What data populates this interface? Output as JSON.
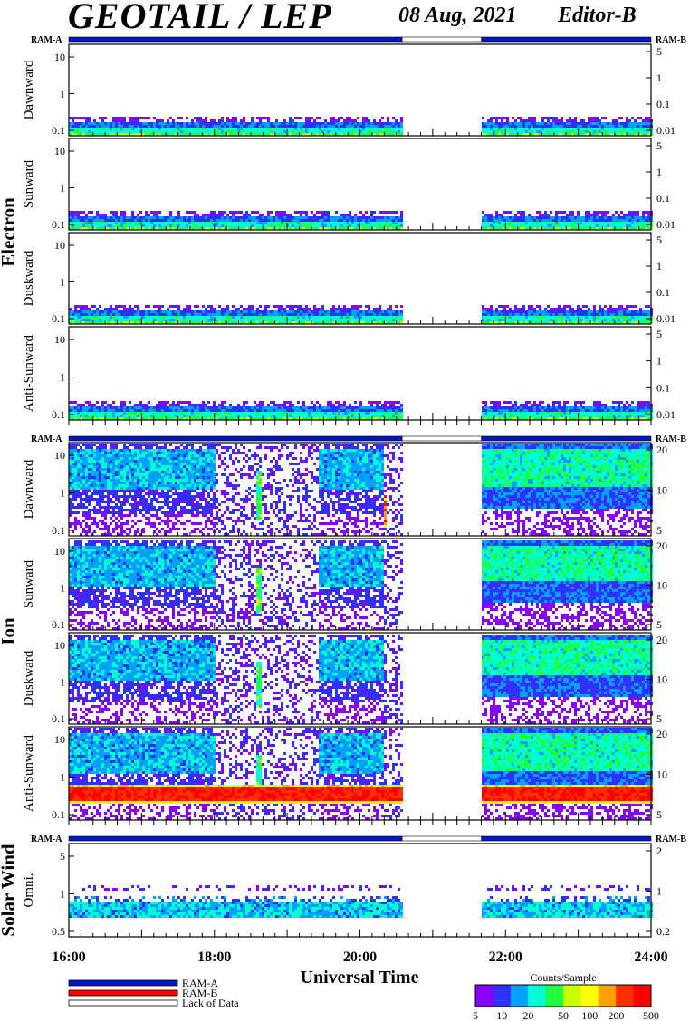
{
  "header": {
    "title": "GEOTAIL / LEP",
    "date": "08 Aug, 2021",
    "editor": "Editor-B"
  },
  "ram_labels": {
    "left": "RAM-A",
    "right": "RAM-B"
  },
  "groups": [
    {
      "label": "Electron"
    },
    {
      "label": "Ion"
    },
    {
      "label": "Solar Wind"
    }
  ],
  "chart_data": {
    "type": "heatmap",
    "xlabel": "Universal Time",
    "time_range_hours": [
      16,
      24
    ],
    "x_tick_labels": [
      "16:00",
      "18:00",
      "20:00",
      "22:00",
      "24:00"
    ],
    "data_gap_hours": [
      20.58,
      21.67
    ],
    "ram_bars": [
      {
        "group": "Electron",
        "segments": [
          {
            "from": 16,
            "to": 20.58,
            "mode": "RAM-A"
          },
          {
            "from": 20.58,
            "to": 21.67,
            "mode": "Lack of Data"
          },
          {
            "from": 21.67,
            "to": 24,
            "mode": "RAM-A"
          }
        ]
      },
      {
        "group": "Ion",
        "segments": [
          {
            "from": 16,
            "to": 20.58,
            "mode": "RAM-A"
          },
          {
            "from": 20.58,
            "to": 21.67,
            "mode": "Lack of Data"
          },
          {
            "from": 21.67,
            "to": 24,
            "mode": "RAM-A"
          }
        ]
      },
      {
        "group": "Solar Wind",
        "segments": [
          {
            "from": 16,
            "to": 20.58,
            "mode": "RAM-A"
          },
          {
            "from": 20.58,
            "to": 21.67,
            "mode": "Lack of Data"
          },
          {
            "from": 21.67,
            "to": 24,
            "mode": "RAM-A"
          }
        ]
      }
    ],
    "panels": [
      {
        "group": "Electron",
        "label": "Dawnward",
        "kind": "electron",
        "left_ticks": [
          "0.1",
          "1",
          "10"
        ],
        "right_ticks": [
          "0.01",
          "0.1",
          "1",
          "5"
        ]
      },
      {
        "group": "Electron",
        "label": "Sunward",
        "kind": "electron",
        "left_ticks": [
          "0.1",
          "1",
          "10"
        ],
        "right_ticks": [
          "0.01",
          "0.1",
          "1",
          "5"
        ]
      },
      {
        "group": "Electron",
        "label": "Duskward",
        "kind": "electron",
        "left_ticks": [
          "0.1",
          "1",
          "10"
        ],
        "right_ticks": [
          "0.01",
          "0.1",
          "1",
          "5"
        ]
      },
      {
        "group": "Electron",
        "label": "Anti-Sunward",
        "kind": "electron",
        "left_ticks": [
          "0.1",
          "1",
          "10"
        ],
        "right_ticks": [
          "0.01",
          "0.1",
          "1",
          "5"
        ]
      },
      {
        "group": "Ion",
        "label": "Dawnward",
        "kind": "ion_dawn",
        "left_ticks": [
          "0.1",
          "1",
          "10"
        ],
        "right_ticks": [
          "5",
          "10",
          "20"
        ]
      },
      {
        "group": "Ion",
        "label": "Sunward",
        "kind": "ion_sun",
        "left_ticks": [
          "0.1",
          "1",
          "10"
        ],
        "right_ticks": [
          "5",
          "10",
          "20"
        ]
      },
      {
        "group": "Ion",
        "label": "Duskward",
        "kind": "ion_dusk",
        "left_ticks": [
          "0.1",
          "1",
          "10"
        ],
        "right_ticks": [
          "5",
          "10",
          "20"
        ]
      },
      {
        "group": "Ion",
        "label": "Anti-Sunward",
        "kind": "ion_anti",
        "left_ticks": [
          "0.1",
          "1",
          "10"
        ],
        "right_ticks": [
          "5",
          "10",
          "20"
        ]
      },
      {
        "group": "Solar Wind",
        "label": "Omni.",
        "kind": "solar",
        "left_ticks": [
          "0.5",
          "1",
          "5"
        ],
        "right_ticks": [
          "0.2",
          "1",
          "2"
        ]
      }
    ],
    "colorbar": {
      "title": "Counts/Sample",
      "scale": "log",
      "range": [
        5,
        500
      ],
      "tick_labels": [
        "5",
        "10",
        "20",
        "50",
        "100",
        "200",
        "500"
      ],
      "colors": [
        "#8800ff",
        "#3030ff",
        "#00a0ff",
        "#00ffd0",
        "#20ff40",
        "#c8ff00",
        "#ffff00",
        "#ffa000",
        "#ff3000",
        "#ff0000"
      ]
    },
    "legend": [
      {
        "label": "RAM-A",
        "color": "#0018c8"
      },
      {
        "label": "RAM-B",
        "color": "#ff0000"
      },
      {
        "label": "Lack of Data",
        "color": "#ffffff"
      }
    ]
  }
}
